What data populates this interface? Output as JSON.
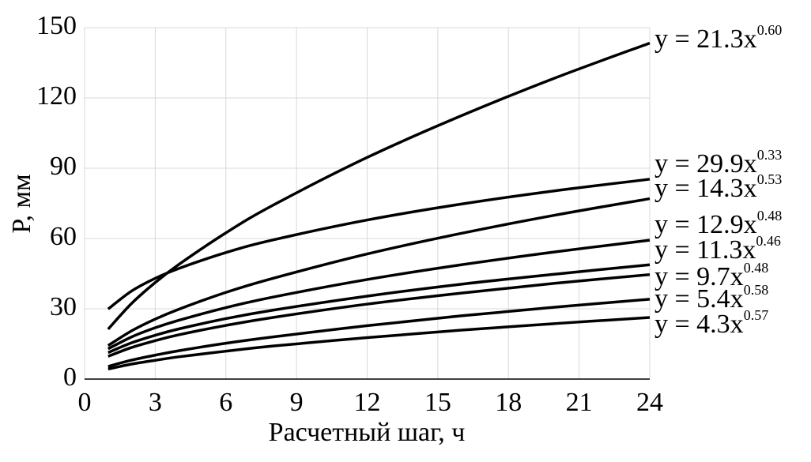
{
  "chart_data": {
    "type": "line",
    "xlabel": "Расчетный шаг, ч",
    "ylabel": "P, мм",
    "x": [
      1,
      2,
      3,
      4,
      6,
      8,
      12,
      16,
      20,
      24
    ],
    "xlim": [
      0,
      24
    ],
    "xticks": [
      0,
      3,
      6,
      9,
      12,
      15,
      18,
      21,
      24
    ],
    "ylim": [
      0,
      150
    ],
    "yticks": [
      0,
      30,
      60,
      90,
      120,
      150
    ],
    "grid": true,
    "series": [
      {
        "equation": "y = 21.3x",
        "exponent": "0.60",
        "color": "#000000",
        "values": [
          21.3,
          32.3,
          41.2,
          48.9,
          62.4,
          74.2,
          94.6,
          112.4,
          128.6,
          143.4
        ]
      },
      {
        "equation": "y = 29.9x",
        "exponent": "0.33",
        "color": "#000000",
        "values": [
          29.9,
          37.6,
          43.0,
          47.2,
          54.0,
          59.4,
          67.9,
          74.7,
          80.4,
          85.3
        ]
      },
      {
        "equation": "y = 14.3x",
        "exponent": "0.53",
        "color": "#000000",
        "values": [
          14.3,
          20.6,
          25.6,
          29.8,
          37.0,
          43.0,
          53.4,
          62.2,
          70.0,
          77.0
        ]
      },
      {
        "equation": "y = 12.9x",
        "exponent": "0.48",
        "color": "#000000",
        "values": [
          12.9,
          18.0,
          21.9,
          25.1,
          30.5,
          35.0,
          42.5,
          48.8,
          54.3,
          59.3
        ]
      },
      {
        "equation": "y = 11.3x",
        "exponent": "0.46",
        "color": "#000000",
        "values": [
          11.3,
          15.5,
          18.7,
          21.4,
          25.8,
          29.4,
          35.4,
          40.5,
          44.8,
          48.8
        ]
      },
      {
        "equation": "y = 9.7x",
        "exponent": "0.48",
        "color": "#000000",
        "values": [
          9.7,
          13.5,
          16.4,
          18.9,
          22.9,
          26.3,
          32.0,
          36.7,
          40.9,
          44.6
        ]
      },
      {
        "equation": "y = 5.4x",
        "exponent": "0.58",
        "color": "#000000",
        "values": [
          5.4,
          8.1,
          10.2,
          12.1,
          15.3,
          18.0,
          22.8,
          27.0,
          30.7,
          34.1
        ]
      },
      {
        "equation": "y = 4.3x",
        "exponent": "0.57",
        "color": "#000000",
        "values": [
          4.3,
          6.4,
          8.0,
          9.5,
          11.9,
          14.1,
          17.7,
          20.9,
          23.7,
          26.3
        ]
      }
    ]
  }
}
